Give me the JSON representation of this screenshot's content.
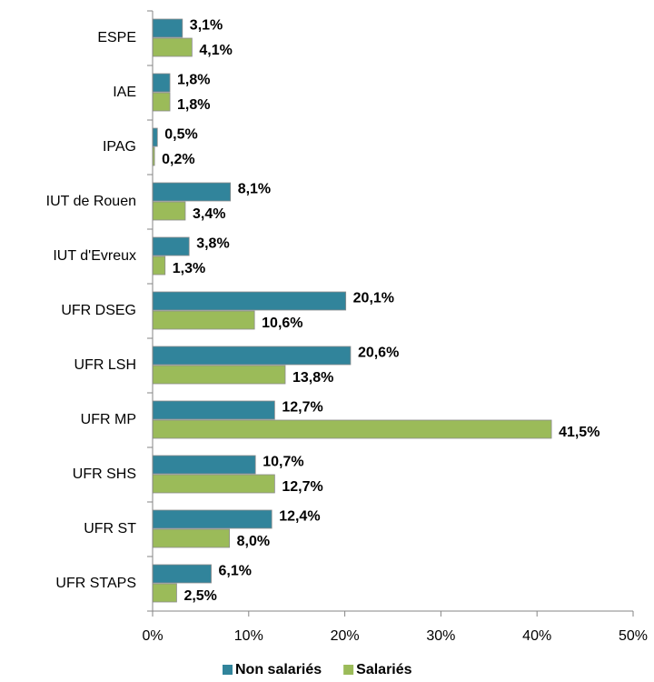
{
  "chart_data": {
    "type": "hbar",
    "categories": [
      "ESPE",
      "IAE",
      "IPAG",
      "IUT de Rouen",
      "IUT d'Evreux",
      "UFR DSEG",
      "UFR LSH",
      "UFR MP",
      "UFR SHS",
      "UFR ST",
      "UFR STAPS"
    ],
    "series": [
      {
        "name": "Non salariés",
        "color": "#31849b",
        "values": [
          3.1,
          1.8,
          0.5,
          8.1,
          3.8,
          20.1,
          20.6,
          12.7,
          10.7,
          12.4,
          6.1
        ],
        "value_labels": [
          "3,1%",
          "1,8%",
          "0,5%",
          "8,1%",
          "3,8%",
          "20,1%",
          "20,6%",
          "12,7%",
          "10,7%",
          "12,4%",
          "6,1%"
        ]
      },
      {
        "name": "Salariés",
        "color": "#9bbb59",
        "values": [
          4.1,
          1.8,
          0.2,
          3.4,
          1.3,
          10.6,
          13.8,
          41.5,
          12.7,
          8.0,
          2.5
        ],
        "value_labels": [
          "4,1%",
          "1,8%",
          "0,2%",
          "3,4%",
          "1,3%",
          "10,6%",
          "13,8%",
          "41,5%",
          "12,7%",
          "8,0%",
          "2,5%"
        ]
      }
    ],
    "xlim": [
      0,
      50
    ],
    "xticks": [
      {
        "value": 0,
        "label": "0%"
      },
      {
        "value": 10,
        "label": "10%"
      },
      {
        "value": 20,
        "label": "20%"
      },
      {
        "value": 30,
        "label": "30%"
      },
      {
        "value": 40,
        "label": "40%"
      },
      {
        "value": 50,
        "label": "50%"
      }
    ],
    "legend": "bottom",
    "grid": false
  }
}
